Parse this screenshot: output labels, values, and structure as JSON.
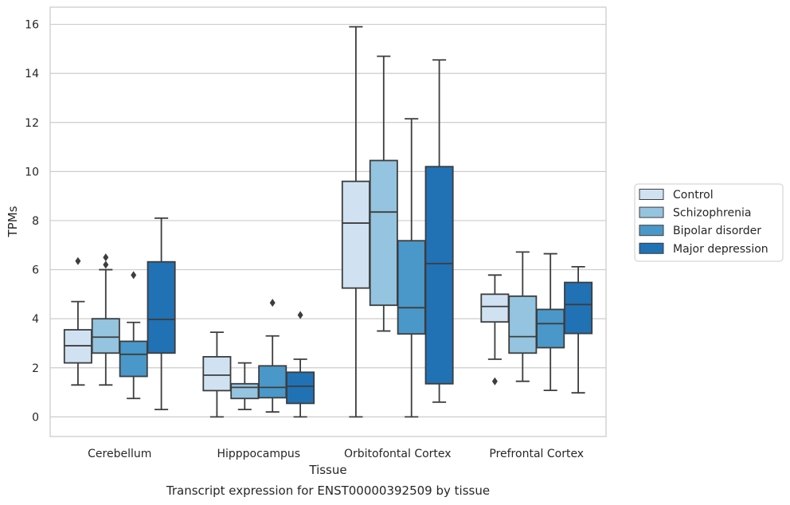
{
  "caption": "Transcript expression for ENST00000392509 by tissue",
  "chart_data": {
    "type": "box",
    "xlabel": "Tissue",
    "ylabel": "TPMs",
    "ylim": [
      -0.8,
      16.7
    ],
    "yticks": [
      0,
      2,
      4,
      6,
      8,
      10,
      12,
      14,
      16
    ],
    "grid": "horizontal",
    "legend_position": "right",
    "categories": [
      "Cerebellum",
      "Hipppocampus",
      "Orbitofontal Cortex",
      "Prefrontal Cortex"
    ],
    "series": [
      {
        "name": "Control",
        "color": "#d0e1f2",
        "boxes": [
          {
            "whislo": 1.3,
            "q1": 2.2,
            "med": 2.9,
            "q3": 3.55,
            "whishi": 4.7,
            "fliers": [
              6.35
            ]
          },
          {
            "whislo": 0.0,
            "q1": 1.07,
            "med": 1.7,
            "q3": 2.45,
            "whishi": 3.45,
            "fliers": []
          },
          {
            "whislo": 0.0,
            "q1": 5.25,
            "med": 7.9,
            "q3": 9.6,
            "whishi": 15.9,
            "fliers": []
          },
          {
            "whislo": 2.35,
            "q1": 3.87,
            "med": 4.5,
            "q3": 5.0,
            "whishi": 5.78,
            "fliers": [
              1.45
            ]
          }
        ]
      },
      {
        "name": "Schizophrenia",
        "color": "#94c4df",
        "boxes": [
          {
            "whislo": 1.3,
            "q1": 2.6,
            "med": 3.25,
            "q3": 4.0,
            "whishi": 6.0,
            "fliers": [
              6.2,
              6.5
            ]
          },
          {
            "whislo": 0.3,
            "q1": 0.75,
            "med": 1.2,
            "q3": 1.35,
            "whishi": 2.2,
            "fliers": []
          },
          {
            "whislo": 3.5,
            "q1": 4.55,
            "med": 8.35,
            "q3": 10.45,
            "whishi": 14.7,
            "fliers": []
          },
          {
            "whislo": 1.45,
            "q1": 2.6,
            "med": 3.27,
            "q3": 4.92,
            "whishi": 6.72,
            "fliers": []
          }
        ]
      },
      {
        "name": "Bipolar disorder",
        "color": "#4a98c9",
        "boxes": [
          {
            "whislo": 0.75,
            "q1": 1.65,
            "med": 2.55,
            "q3": 3.08,
            "whishi": 3.85,
            "fliers": [
              5.78
            ]
          },
          {
            "whislo": 0.2,
            "q1": 0.78,
            "med": 1.2,
            "q3": 2.08,
            "whishi": 3.3,
            "fliers": [
              4.65
            ]
          },
          {
            "whislo": 0.0,
            "q1": 3.38,
            "med": 4.45,
            "q3": 7.18,
            "whishi": 12.15,
            "fliers": []
          },
          {
            "whislo": 1.08,
            "q1": 2.82,
            "med": 3.8,
            "q3": 4.38,
            "whishi": 6.65,
            "fliers": []
          }
        ]
      },
      {
        "name": "Major depression",
        "color": "#2171b5",
        "boxes": [
          {
            "whislo": 0.3,
            "q1": 2.6,
            "med": 3.97,
            "q3": 6.32,
            "whishi": 8.1,
            "fliers": []
          },
          {
            "whislo": 0.0,
            "q1": 0.55,
            "med": 1.25,
            "q3": 1.82,
            "whishi": 2.35,
            "fliers": [
              4.15
            ]
          },
          {
            "whislo": 0.6,
            "q1": 1.35,
            "med": 6.25,
            "q3": 10.2,
            "whishi": 14.55,
            "fliers": []
          },
          {
            "whislo": 0.98,
            "q1": 3.4,
            "med": 4.58,
            "q3": 5.48,
            "whishi": 6.12,
            "fliers": []
          }
        ]
      }
    ]
  }
}
